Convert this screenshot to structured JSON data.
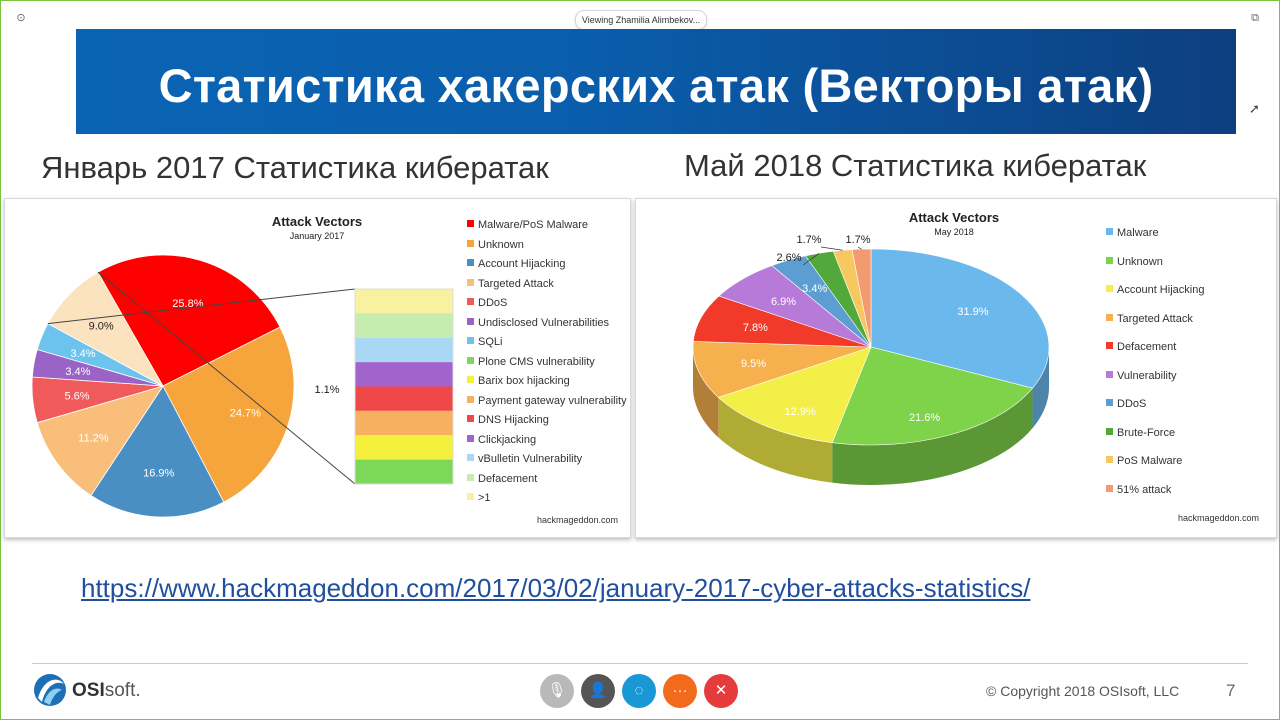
{
  "viewer": {
    "viewing_label": "Viewing Zhamilia Alimbekov..."
  },
  "slide": {
    "title": "Статистика хакерских атак (Векторы атак)",
    "left_subtitle": "Январь 2017 Статистика кибератак",
    "right_subtitle": "Май 2018 Статистика кибератак",
    "source_link": "https://www.hackmageddon.com/2017/03/02/january-2017-cyber-attacks-statistics/",
    "copyright": "© Copyright 2018 OSIsoft, LLC",
    "page_number": "7",
    "logo_bold": "OSI",
    "logo_rest": "soft",
    "logo_dot": "."
  },
  "chart_data": [
    {
      "type": "pie",
      "title": "Attack Vectors",
      "subtitle": "January 2017",
      "watermark": "hackmageddon.com",
      "series": [
        {
          "name": "Malware/PoS Malware",
          "value": 25.8,
          "label": "25.8%",
          "color": "#ff0000"
        },
        {
          "name": "Unknown",
          "value": 24.7,
          "label": "24.7%",
          "color": "#f5a53c"
        },
        {
          "name": "Account Hijacking",
          "value": 16.9,
          "label": "16.9%",
          "color": "#4a8fc4"
        },
        {
          "name": "Targeted Attack",
          "value": 11.2,
          "label": "11.2%",
          "color": "#f9bf7a"
        },
        {
          "name": "DDoS",
          "value": 5.6,
          "label": "5.6%",
          "color": "#f05a5a"
        },
        {
          "name": "Undisclosed Vulnerabilities",
          "value": 3.4,
          "label": "3.4%",
          "color": "#9a63c6"
        },
        {
          "name": "SQLi",
          "value": 3.4,
          "label": "3.4%",
          "color": "#6cc4ee"
        },
        {
          "name": "Plone CMS vulnerability",
          "value": 1.1,
          "color": "#7dd85a"
        },
        {
          "name": "Barix box hijacking",
          "value": 1.1,
          "color": "#f4f03c"
        },
        {
          "name": "Payment gateway vulnerability",
          "value": 1.1,
          "color": "#f7b060"
        },
        {
          "name": "DNS Hijacking",
          "value": 1.1,
          "color": "#f04848"
        },
        {
          "name": "Clickjacking",
          "value": 1.1,
          "color": "#a064cc"
        },
        {
          "name": "vBulletin Vulnerability",
          "value": 1.1,
          "color": "#a8d8f4"
        },
        {
          "name": "Defacement",
          "value": 1.1,
          "color": "#c6ecb0"
        },
        {
          "name": ">1",
          "value": 1.1,
          "color": "#f8f2a0"
        }
      ],
      "other_group_label": "9.0%",
      "breakout_label": "1.1%",
      "legend_placement": "right"
    },
    {
      "type": "pie",
      "title": "Attack Vectors",
      "subtitle": "May 2018",
      "watermark": "hackmageddon.com",
      "series": [
        {
          "name": "Malware",
          "value": 31.9,
          "label": "31.9%",
          "color": "#6ab8ec"
        },
        {
          "name": "Unknown",
          "value": 21.6,
          "label": "21.6%",
          "color": "#7fd34a"
        },
        {
          "name": "Account Hijacking",
          "value": 12.9,
          "label": "12.9%",
          "color": "#f4ee48"
        },
        {
          "name": "Targeted Attack",
          "value": 9.5,
          "label": "9.5%",
          "color": "#f6b04e"
        },
        {
          "name": "Defacement",
          "value": 7.8,
          "label": "7.8%",
          "color": "#f23a2a"
        },
        {
          "name": "Vulnerability",
          "value": 6.9,
          "label": "6.9%",
          "color": "#b77ad8"
        },
        {
          "name": "DDoS",
          "value": 3.4,
          "label": "3.4%",
          "color": "#5c9ed2"
        },
        {
          "name": "Brute-Force",
          "value": 2.6,
          "label": "2.6%",
          "color": "#52a83a"
        },
        {
          "name": "PoS Malware",
          "value": 1.7,
          "label": "1.7%",
          "color": "#f8c860"
        },
        {
          "name": "51% attack",
          "value": 1.7,
          "label": "1.7%",
          "color": "#f49a70"
        }
      ],
      "legend_placement": "right"
    }
  ],
  "toolbar": {
    "buttons": [
      {
        "name": "mic",
        "glyph": "🎙",
        "color": "#b9b9b9"
      },
      {
        "name": "participants",
        "glyph": "👤",
        "color": "#555555"
      },
      {
        "name": "chat",
        "glyph": "◌",
        "color": "#1a98d5"
      },
      {
        "name": "more",
        "glyph": "···",
        "color": "#f26b1d"
      },
      {
        "name": "leave",
        "glyph": "✕",
        "color": "#e63b3b"
      }
    ]
  }
}
